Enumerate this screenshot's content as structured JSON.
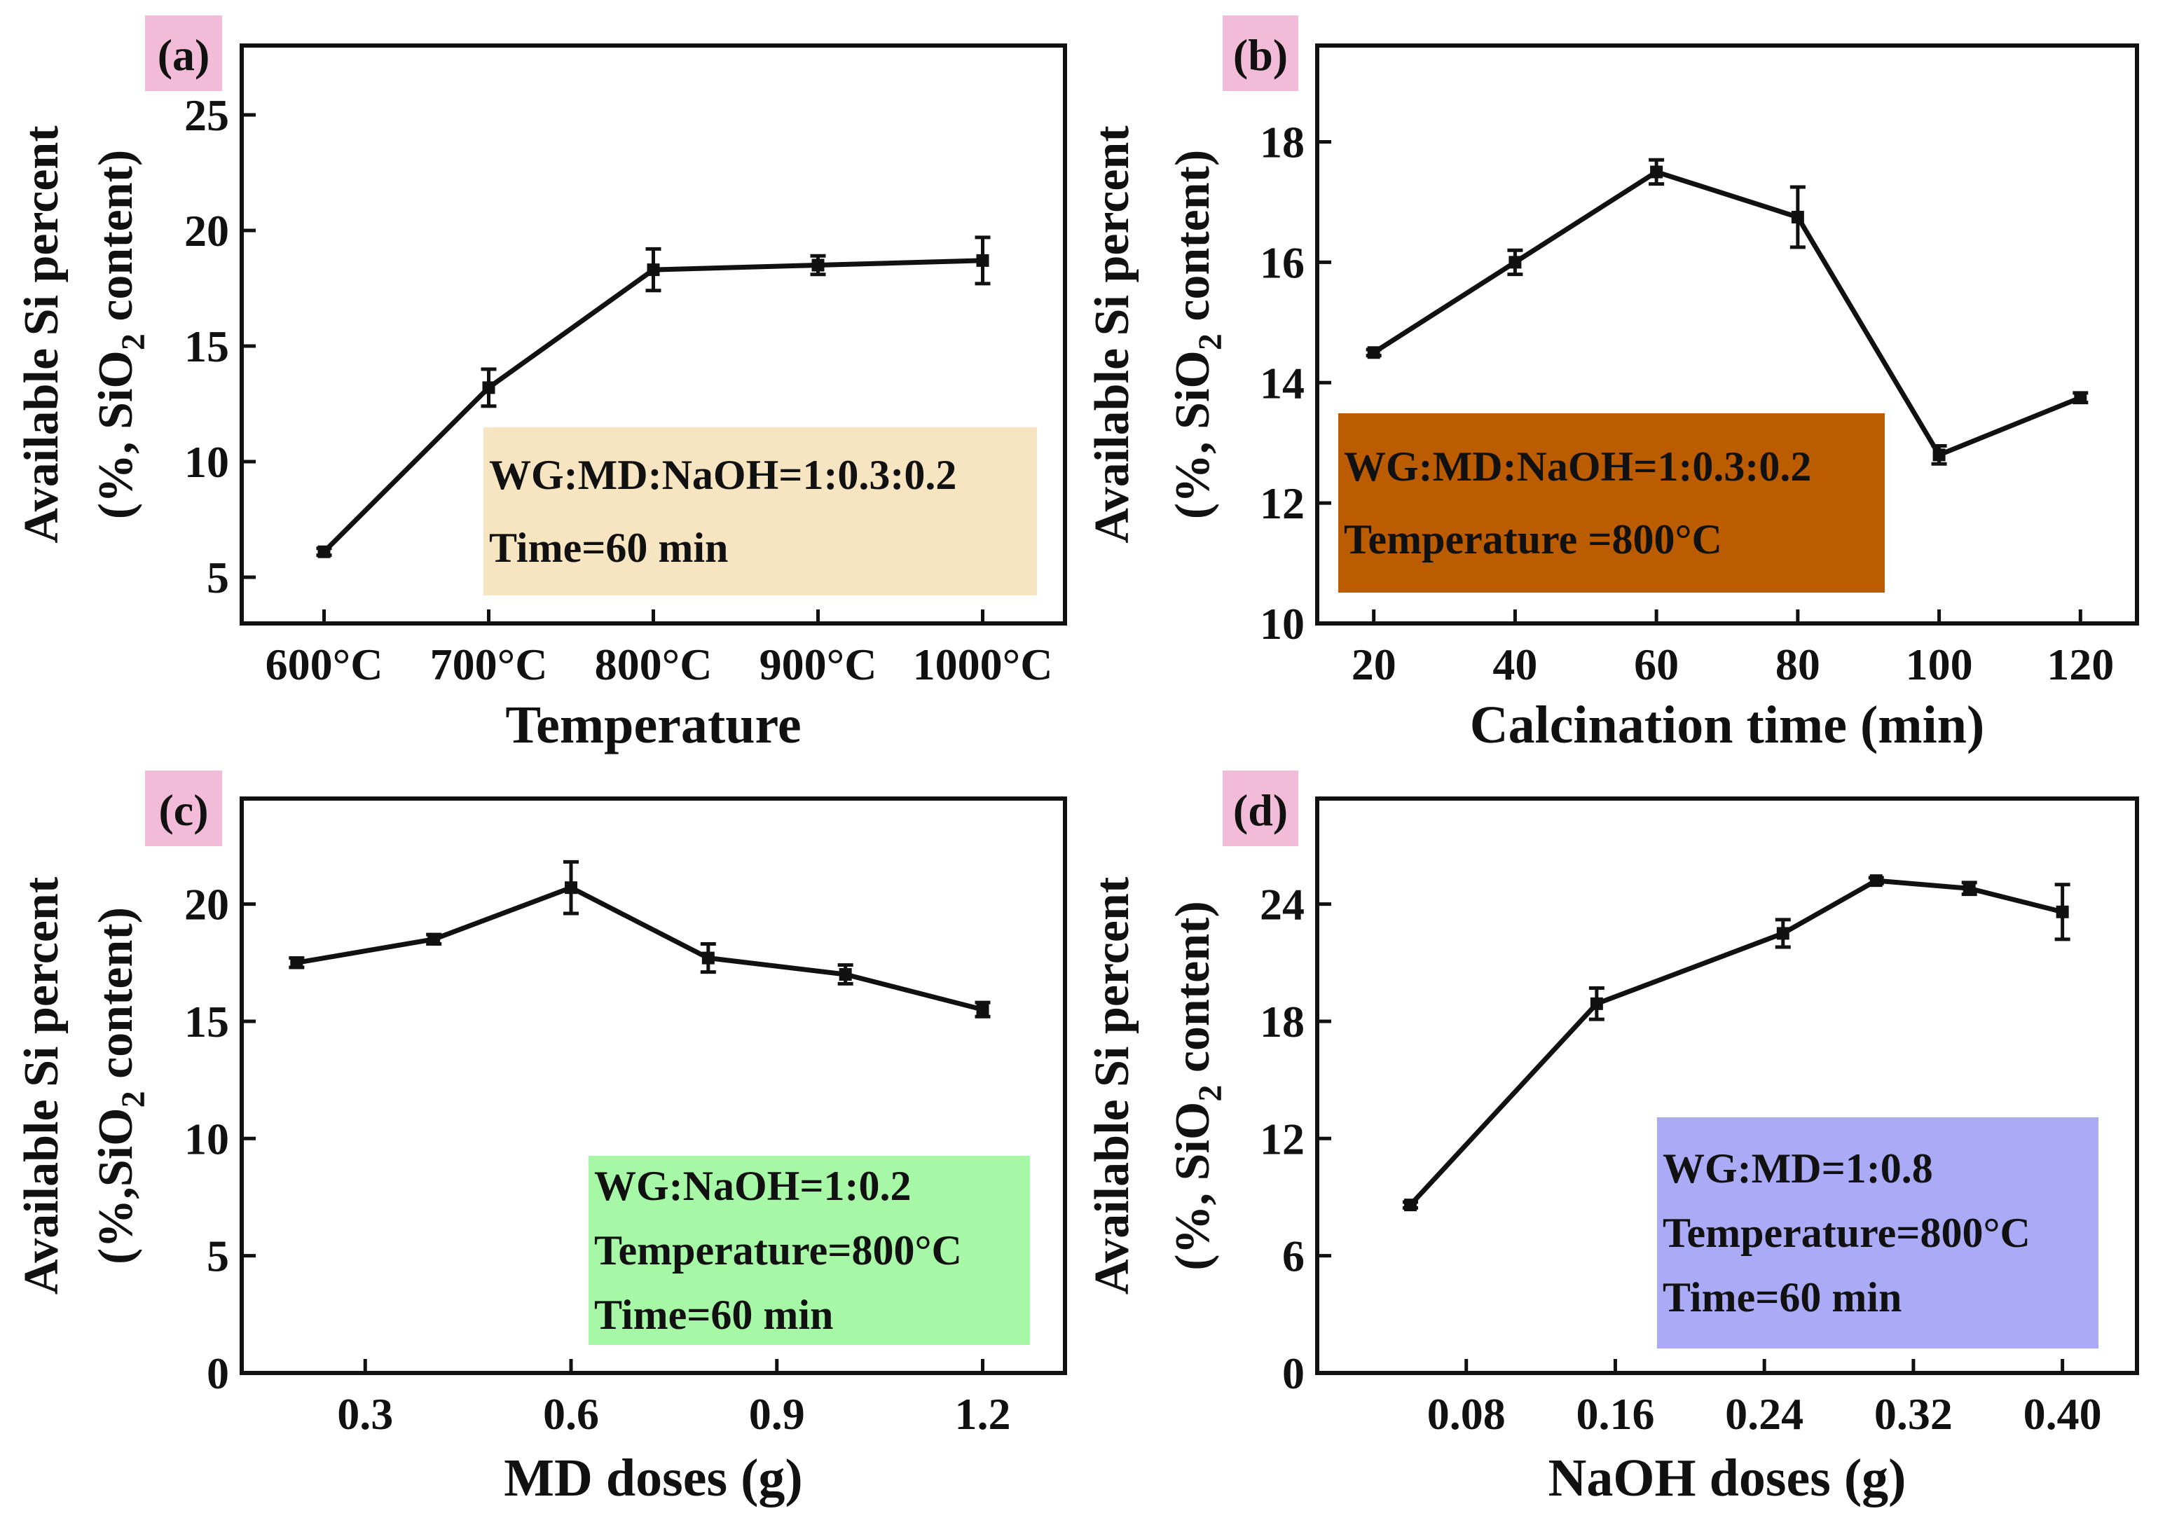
{
  "chart_data": [
    {
      "id": "a",
      "type": "line",
      "panel_label": "(a)",
      "xlabel": "Temperature",
      "ylabel": "Available Si percent",
      "ylabel2": [
        "(%, SiO",
        "2",
        " content)"
      ],
      "categories": [
        "600°C",
        "700°C",
        "800°C",
        "900°C",
        "1000°C"
      ],
      "x": [
        0,
        1,
        2,
        3,
        4
      ],
      "xlim": [
        -0.5,
        4.5
      ],
      "ylim": [
        3,
        28
      ],
      "yticks": [
        5,
        10,
        15,
        20,
        25
      ],
      "values": [
        6.1,
        13.2,
        18.3,
        18.5,
        18.7
      ],
      "errors": [
        0.15,
        0.8,
        0.9,
        0.4,
        1.0
      ],
      "annotation": {
        "lines": [
          "WG:MD:NaOH=1:0.3:0.2",
          "Time=60 min"
        ],
        "background": "#f7e5c2"
      }
    },
    {
      "id": "b",
      "type": "line",
      "panel_label": "(b)",
      "xlabel": "Calcination time (min)",
      "ylabel": "Available Si percent",
      "ylabel2": [
        "(%,  SiO",
        "2",
        " content)"
      ],
      "x": [
        20,
        40,
        60,
        80,
        100,
        120
      ],
      "xlim": [
        12,
        128
      ],
      "ylim": [
        10,
        19.6
      ],
      "xticks": [
        20,
        40,
        60,
        80,
        100,
        120
      ],
      "yticks": [
        10,
        12,
        14,
        16,
        18
      ],
      "values": [
        14.5,
        16.0,
        17.5,
        16.75,
        12.8,
        13.75
      ],
      "errors": [
        0.05,
        0.2,
        0.2,
        0.5,
        0.15,
        0.08
      ],
      "annotation": {
        "lines": [
          "WG:MD:NaOH=1:0.3:0.2",
          "Temperature =800°C"
        ],
        "background": "#bc5c00"
      }
    },
    {
      "id": "c",
      "type": "line",
      "panel_label": "(c)",
      "xlabel": "MD doses (g)",
      "ylabel": "Available Si percent",
      "ylabel2": [
        "(%,SiO",
        "2",
        " content)"
      ],
      "x": [
        0.2,
        0.4,
        0.6,
        0.8,
        1.0,
        1.2
      ],
      "xlim": [
        0.12,
        1.32
      ],
      "ylim": [
        0,
        24.5
      ],
      "xticks": [
        0.3,
        0.6,
        0.9,
        1.2
      ],
      "yticks": [
        0,
        5,
        10,
        15,
        20
      ],
      "values": [
        17.5,
        18.5,
        20.7,
        17.7,
        17.0,
        15.5
      ],
      "errors": [
        0.2,
        0.2,
        1.1,
        0.6,
        0.4,
        0.3
      ],
      "annotation": {
        "lines": [
          "WG:NaOH=1:0.2",
          "Temperature=800°C",
          "Time=60 min"
        ],
        "background": "#a6f7a6"
      }
    },
    {
      "id": "d",
      "type": "line",
      "panel_label": "(d)",
      "xlabel": "NaOH doses (g)",
      "ylabel": "Available Si percent",
      "ylabel2": [
        "(%,  SiO",
        "2",
        " content)"
      ],
      "x": [
        0.05,
        0.15,
        0.25,
        0.3,
        0.35,
        0.4
      ],
      "xlim": [
        0.0,
        0.44
      ],
      "ylim": [
        0,
        29.4
      ],
      "xticks": [
        0.08,
        0.16,
        0.24,
        0.32,
        0.4
      ],
      "yticks": [
        0,
        6,
        12,
        18,
        24
      ],
      "values": [
        8.6,
        18.9,
        22.5,
        25.2,
        24.8,
        23.6
      ],
      "errors": [
        0.15,
        0.8,
        0.7,
        0.15,
        0.3,
        1.4
      ],
      "annotation": {
        "lines": [
          "WG:MD=1:0.8",
          "Temperature=800°C",
          "Time=60 min"
        ],
        "background": "#aaaaf7"
      }
    }
  ],
  "colors": {
    "label_box": "#f2bcd8",
    "line": "#111111"
  }
}
